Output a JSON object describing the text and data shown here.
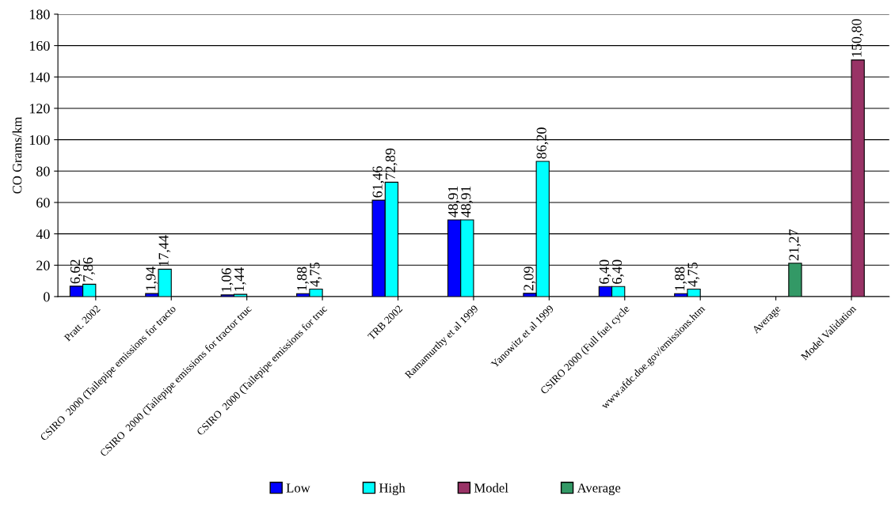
{
  "chart_data": {
    "type": "bar",
    "ylabel": "CO Grams/km",
    "categories": [
      "Pratt. 2002",
      "CSIRO  2000 (Tailepipe emissions for tracto",
      "CSIRO  2000 (Tailepipe emissions for tractor truc",
      "CSIRO  2000 (Tailepipe emissions for truc",
      "TRB 2002",
      "Ramamurthy et al 1999",
      "Yanowitz et al 1999",
      "CSIRO 2000 (Full fuel cycle",
      "www.afdc.doe.gov/emissions.htm",
      "Average",
      "Model Validation"
    ],
    "series": [
      {
        "name": "Low",
        "color": "#0000ff",
        "values": [
          6.62,
          1.94,
          1.06,
          1.88,
          61.46,
          48.91,
          2.09,
          6.4,
          1.88,
          null,
          null
        ],
        "value_labels": [
          "6,62",
          "1,94",
          "1,06",
          "1,88",
          "61,46",
          "48,91",
          "2,09",
          "6,40",
          "1,88",
          null,
          null
        ]
      },
      {
        "name": "High",
        "color": "#00ffff",
        "values": [
          7.86,
          17.44,
          1.44,
          4.75,
          72.89,
          48.91,
          86.2,
          6.4,
          4.75,
          null,
          null
        ],
        "value_labels": [
          "7,86",
          "17,44",
          "1,44",
          "4,75",
          "72,89",
          "48,91",
          "86,20",
          "6,40",
          "4,75",
          null,
          null
        ]
      },
      {
        "name": "Model",
        "color": "#993366",
        "values": [
          null,
          null,
          null,
          null,
          null,
          null,
          null,
          null,
          null,
          null,
          150.8
        ],
        "value_labels": [
          null,
          null,
          null,
          null,
          null,
          null,
          null,
          null,
          null,
          null,
          "150,80"
        ]
      },
      {
        "name": "Average",
        "color": "#339966",
        "values": [
          null,
          null,
          null,
          null,
          null,
          null,
          null,
          null,
          null,
          21.27,
          null
        ],
        "value_labels": [
          null,
          null,
          null,
          null,
          null,
          null,
          null,
          null,
          null,
          "21,27",
          null
        ]
      }
    ],
    "ylim": [
      0,
      180
    ],
    "yticks": [
      0,
      20,
      40,
      60,
      80,
      100,
      120,
      140,
      160,
      180
    ],
    "grid": "y",
    "legend": "bottom"
  }
}
